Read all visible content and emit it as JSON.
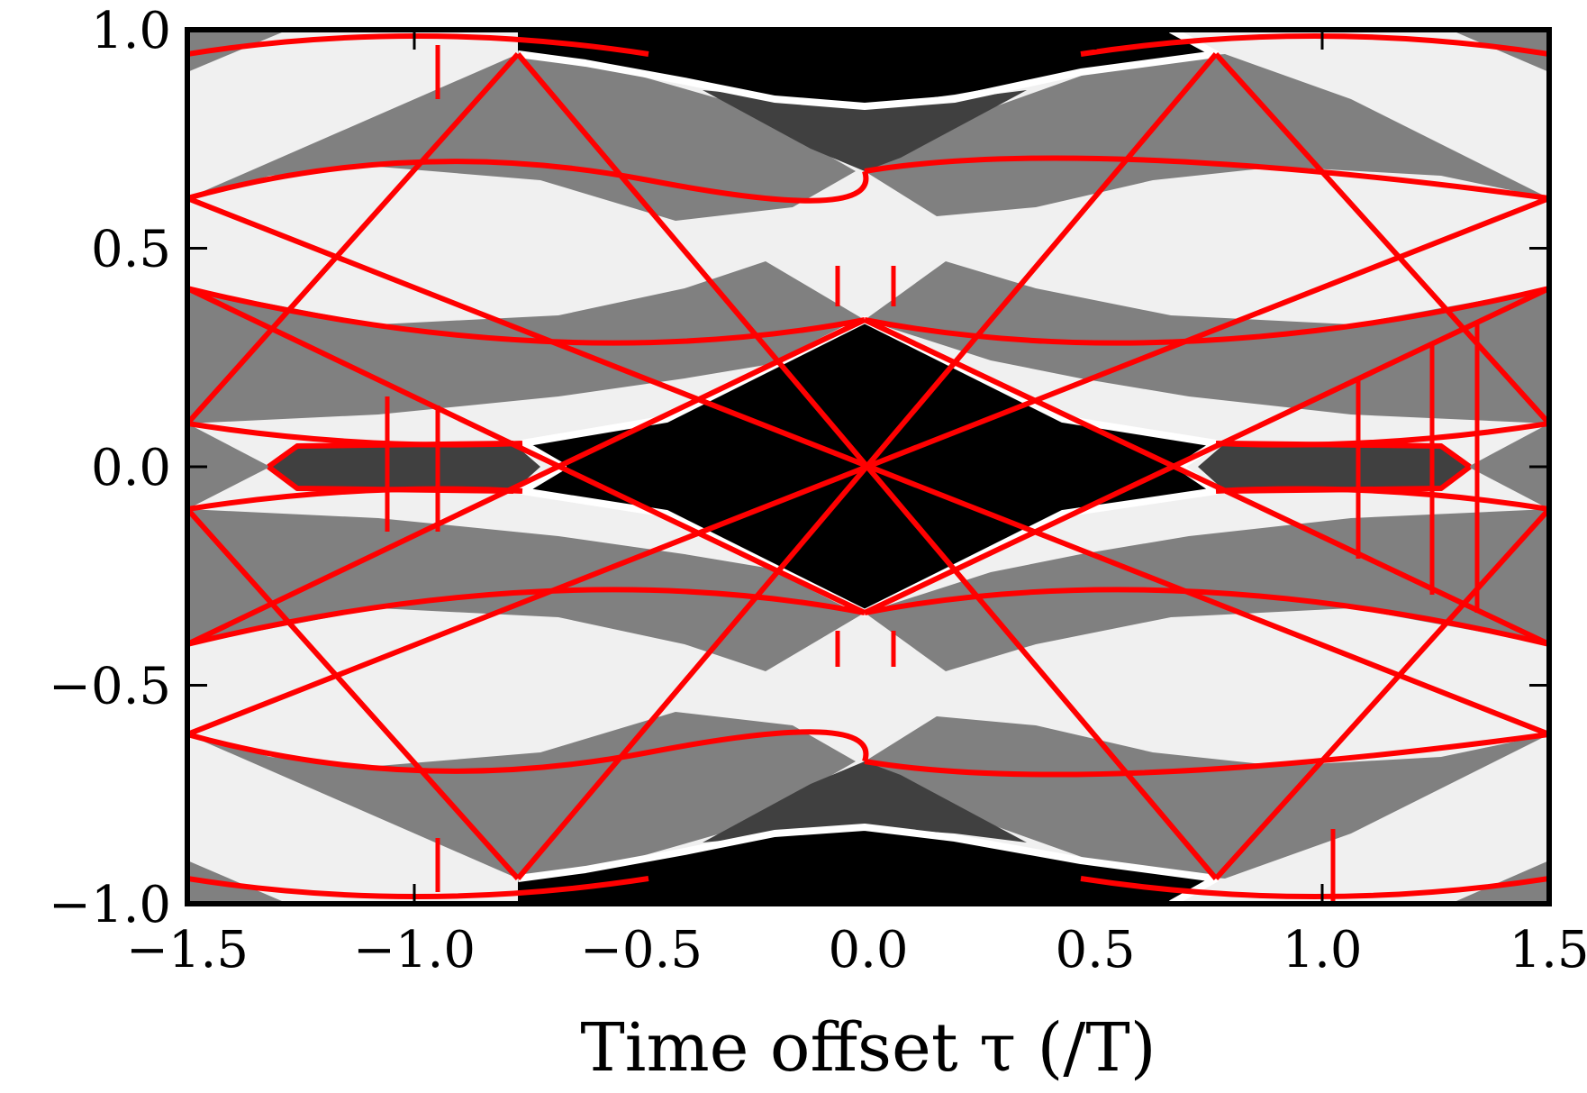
{
  "chart_data": {
    "type": "heatmap",
    "title": "",
    "xlabel": "Time offset τ (/T)",
    "ylabel": "",
    "xlim": [
      -1.5,
      1.5
    ],
    "ylim": [
      -1.0,
      1.0
    ],
    "x_ticks": [
      -1.5,
      -1.0,
      -0.5,
      0.0,
      0.5,
      1.0,
      1.5
    ],
    "x_tick_labels": [
      "−1.5",
      "−1.0",
      "−0.5",
      "0.0",
      "0.5",
      "1.0",
      "1.5"
    ],
    "y_ticks": [
      -1.0,
      -0.5,
      0.0,
      0.5,
      1.0
    ],
    "y_tick_labels": [
      "−1.0",
      "−0.5",
      "0.0",
      "0.5",
      "1.0"
    ],
    "grid": false,
    "colors": {
      "background": "#f0f0f0",
      "region_gray": "#808080",
      "region_dark": "#404040",
      "region_black": "#000000",
      "boundary_red": "#ff0000",
      "boundary_white": "#ffffff"
    },
    "boundaries": {
      "diagonal_lines": [
        {
          "x": [
            -0.8,
            0.8
          ],
          "y": [
            1.0,
            -1.0
          ]
        },
        {
          "x": [
            -0.8,
            0.8
          ],
          "y": [
            -1.0,
            1.0
          ]
        },
        {
          "x": [
            -1.5,
            0.0
          ],
          "y": [
            0.5,
            0.333
          ]
        },
        {
          "x": [
            -1.5,
            0.0
          ],
          "y": [
            -0.5,
            -0.333
          ]
        }
      ],
      "center_black_region": {
        "x": [
          0.0,
          0.7,
          0.8,
          0.7,
          0.8,
          0.0,
          -0.8,
          -0.7,
          -0.8,
          -0.7
        ],
        "y": [
          0.333,
          0.1,
          0.05,
          0.0,
          -0.05,
          -0.333,
          -0.05,
          0.0,
          0.05,
          0.1
        ]
      },
      "side_dark_regions": [
        {
          "x_range": [
            -1.35,
            -0.75
          ],
          "y_range": [
            -0.05,
            0.05
          ]
        },
        {
          "x_range": [
            0.75,
            1.35
          ],
          "y_range": [
            -0.05,
            0.05
          ]
        }
      ],
      "red_vertical_segments_x": [
        -1.05,
        -0.94,
        -0.06,
        0.06,
        1.08,
        1.25,
        1.32
      ]
    }
  }
}
